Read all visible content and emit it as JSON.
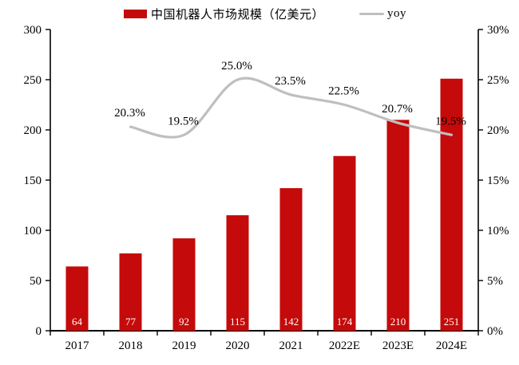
{
  "chart_data": {
    "type": "combo",
    "title": "",
    "categories": [
      "2017",
      "2018",
      "2019",
      "2020",
      "2021",
      "2022E",
      "2023E",
      "2024E"
    ],
    "series": [
      {
        "name": "中国机器人市场规模（亿美元）",
        "type": "bar",
        "axis": "left",
        "color": "#C40A0A",
        "values": [
          64,
          77,
          92,
          115,
          142,
          174,
          210,
          251
        ],
        "data_labels": [
          "64",
          "77",
          "92",
          "115",
          "142",
          "174",
          "210",
          "251"
        ],
        "data_label_color": "#FFFFFF"
      },
      {
        "name": "yoy",
        "type": "line",
        "axis": "right",
        "color": "#BFBFBF",
        "smooth": true,
        "values": [
          null,
          20.3,
          19.5,
          25.0,
          23.5,
          22.5,
          20.7,
          19.5
        ],
        "data_labels": [
          null,
          "20.3%",
          "19.5%",
          "25.0%",
          "23.5%",
          "22.5%",
          "20.7%",
          "19.5%"
        ],
        "data_label_color": "#000000"
      }
    ],
    "left_axis": {
      "min": 0,
      "max": 300,
      "step": 50,
      "tick_labels": [
        "0",
        "50",
        "100",
        "150",
        "200",
        "250",
        "300"
      ]
    },
    "right_axis": {
      "min": 0,
      "max": 30,
      "step": 5,
      "tick_labels": [
        "0%",
        "5%",
        "10%",
        "15%",
        "20%",
        "25%",
        "30%"
      ]
    },
    "grid": false,
    "legend_position": "top",
    "axis_color": "#000000",
    "text_color": "#000000",
    "background": "#FFFFFF"
  }
}
